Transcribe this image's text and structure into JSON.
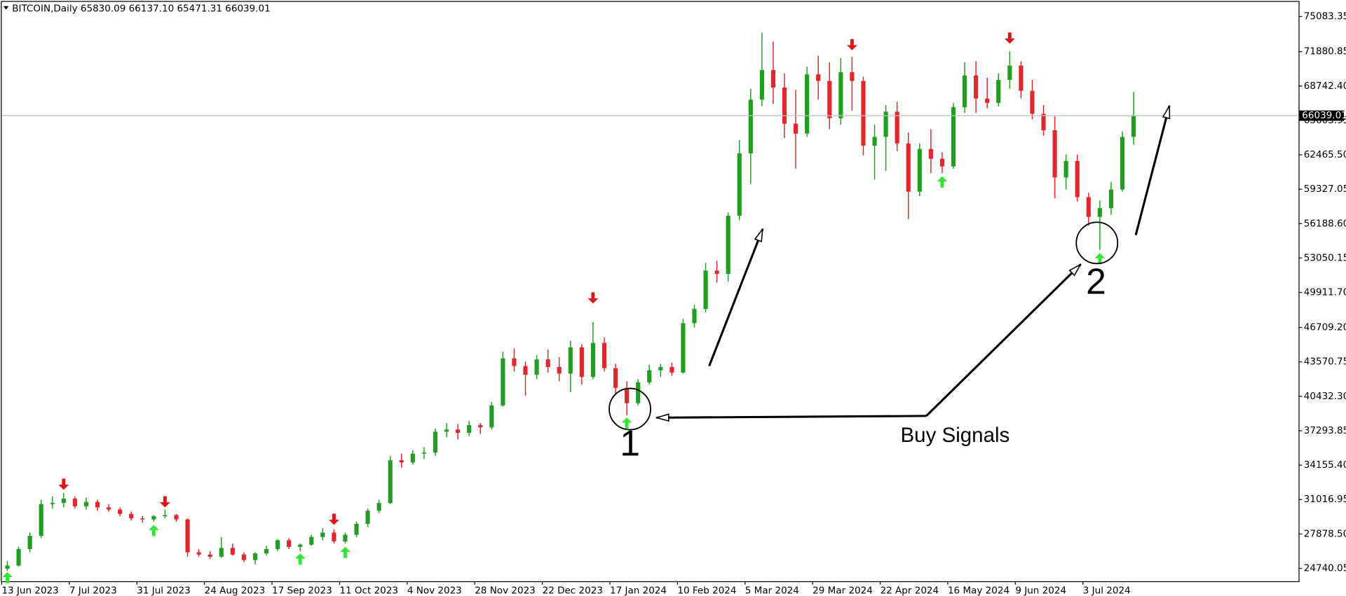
{
  "chart_data": {
    "type": "candlestick",
    "title": "BITCOIN,Daily 65830.09 66137.10 65471.31 66039.01",
    "up_color": "#1f9e1f",
    "down_color": "#e3262b",
    "current_price": 66039.01,
    "ylim": [
      23563,
      76417
    ],
    "yticks": [
      {
        "value": 75083.35,
        "label": "75083.35"
      },
      {
        "value": 71880.85,
        "label": "71880.85"
      },
      {
        "value": 68742.4,
        "label": "68742.40"
      },
      {
        "value": 65603.95,
        "label": "65603.95"
      },
      {
        "value": 62465.5,
        "label": "62465.50"
      },
      {
        "value": 59327.05,
        "label": "59327.05"
      },
      {
        "value": 56188.6,
        "label": "56188.60"
      },
      {
        "value": 53050.15,
        "label": "53050.15"
      },
      {
        "value": 49911.7,
        "label": "49911.70"
      },
      {
        "value": 46709.2,
        "label": "46709.20"
      },
      {
        "value": 43570.75,
        "label": "43570.75"
      },
      {
        "value": 40432.3,
        "label": "40432.30"
      },
      {
        "value": 37293.85,
        "label": "37293.85"
      },
      {
        "value": 34155.4,
        "label": "34155.40"
      },
      {
        "value": 31016.95,
        "label": "31016.95"
      },
      {
        "value": 27878.5,
        "label": "27878.50"
      },
      {
        "value": 24740.05,
        "label": "24740.05"
      }
    ],
    "categories": [
      "13 Jun 2023",
      null,
      null,
      null,
      null,
      null,
      "7 Jul 2023",
      null,
      null,
      null,
      null,
      null,
      "31 Jul 2023",
      null,
      null,
      null,
      null,
      null,
      "24 Aug 2023",
      null,
      null,
      null,
      null,
      null,
      "17 Sep 2023",
      null,
      null,
      null,
      null,
      null,
      "11 Oct 2023",
      null,
      null,
      null,
      null,
      null,
      "4 Nov 2023",
      null,
      null,
      null,
      null,
      null,
      "28 Nov 2023",
      null,
      null,
      null,
      null,
      null,
      "22 Dec 2023",
      null,
      null,
      null,
      null,
      null,
      "17 Jan 2024",
      null,
      null,
      null,
      null,
      null,
      "10 Feb 2024",
      null,
      null,
      null,
      null,
      null,
      "5 Mar 2024",
      null,
      null,
      null,
      null,
      null,
      "29 Mar 2024",
      null,
      null,
      null,
      null,
      null,
      "22 Apr 2024",
      null,
      null,
      null,
      null,
      null,
      "16 May 2024",
      null,
      null,
      null,
      null,
      null,
      "9 Jun 2024",
      null,
      null,
      null,
      null,
      null,
      "3 Jul 2024",
      null,
      null,
      null,
      null,
      null,
      null,
      null,
      null,
      null,
      null
    ],
    "ohlc": [
      [
        24700,
        25400,
        24500,
        25000
      ],
      [
        25000,
        26700,
        24900,
        26500
      ],
      [
        26500,
        28000,
        26200,
        27700
      ],
      [
        27700,
        31000,
        27500,
        30600
      ],
      [
        30600,
        31300,
        30200,
        30700
      ],
      [
        30700,
        31600,
        30300,
        31100
      ],
      [
        31100,
        31300,
        30200,
        30400
      ],
      [
        30400,
        31200,
        30100,
        30800
      ],
      [
        30800,
        31000,
        30000,
        30300
      ],
      [
        30300,
        30600,
        29900,
        30100
      ],
      [
        30100,
        30300,
        29500,
        29700
      ],
      [
        29700,
        29900,
        29100,
        29300
      ],
      [
        29300,
        29500,
        28900,
        29200
      ],
      [
        29200,
        29600,
        29000,
        29500
      ],
      [
        29500,
        30100,
        29300,
        29600
      ],
      [
        29600,
        29700,
        29000,
        29200
      ],
      [
        29200,
        29300,
        25800,
        26200
      ],
      [
        26200,
        26500,
        25800,
        26000
      ],
      [
        26000,
        26300,
        25600,
        25800
      ],
      [
        25800,
        27600,
        25700,
        26600
      ],
      [
        26600,
        27000,
        25900,
        26000
      ],
      [
        26000,
        26200,
        25300,
        25500
      ],
      [
        25500,
        26200,
        25100,
        26100
      ],
      [
        26100,
        26800,
        25900,
        26500
      ],
      [
        26500,
        27400,
        26300,
        27300
      ],
      [
        27300,
        27500,
        26500,
        26700
      ],
      [
        26700,
        27000,
        26300,
        26900
      ],
      [
        26900,
        27800,
        26800,
        27600
      ],
      [
        27600,
        28400,
        27300,
        28000
      ],
      [
        28000,
        28300,
        27000,
        27200
      ],
      [
        27200,
        28000,
        27000,
        27800
      ],
      [
        27800,
        29000,
        27600,
        28800
      ],
      [
        28800,
        30200,
        28500,
        30000
      ],
      [
        30000,
        31000,
        29800,
        30700
      ],
      [
        30700,
        35000,
        30600,
        34600
      ],
      [
        34600,
        35200,
        33900,
        34400
      ],
      [
        34400,
        35500,
        34200,
        35200
      ],
      [
        35200,
        35800,
        34700,
        35300
      ],
      [
        35300,
        37500,
        35000,
        37200
      ],
      [
        37200,
        38000,
        36700,
        37400
      ],
      [
        37400,
        37900,
        36500,
        37100
      ],
      [
        37100,
        38200,
        36800,
        37800
      ],
      [
        37800,
        38000,
        37000,
        37600
      ],
      [
        37600,
        39900,
        37400,
        39600
      ],
      [
        39600,
        44500,
        39500,
        43900
      ],
      [
        43900,
        44800,
        42700,
        43200
      ],
      [
        43200,
        43600,
        40500,
        42400
      ],
      [
        42400,
        44200,
        42000,
        43800
      ],
      [
        43800,
        44700,
        42600,
        43100
      ],
      [
        43100,
        44000,
        41800,
        42500
      ],
      [
        42500,
        45500,
        40800,
        44900
      ],
      [
        44900,
        45200,
        41500,
        42200
      ],
      [
        42200,
        47200,
        42000,
        45300
      ],
      [
        45300,
        45800,
        42700,
        43000
      ],
      [
        43000,
        43400,
        40600,
        41200
      ],
      [
        41200,
        41800,
        38700,
        39800
      ],
      [
        39800,
        42000,
        39600,
        41700
      ],
      [
        41700,
        43300,
        41500,
        42800
      ],
      [
        42800,
        43400,
        42200,
        43100
      ],
      [
        43100,
        43500,
        42300,
        42600
      ],
      [
        42600,
        47500,
        42500,
        47100
      ],
      [
        47100,
        48800,
        46700,
        48400
      ],
      [
        48400,
        52600,
        48100,
        51900
      ],
      [
        51900,
        52800,
        50800,
        51600
      ],
      [
        51600,
        57200,
        50900,
        56900
      ],
      [
        56900,
        63800,
        56500,
        62600
      ],
      [
        62600,
        68500,
        59800,
        67500
      ],
      [
        67500,
        73600,
        66900,
        70200
      ],
      [
        70200,
        72800,
        67100,
        68600
      ],
      [
        68600,
        69900,
        64000,
        65300
      ],
      [
        65300,
        68400,
        61200,
        64400
      ],
      [
        64400,
        70500,
        64100,
        69800
      ],
      [
        69800,
        71500,
        67500,
        69200
      ],
      [
        69200,
        70900,
        64800,
        65800
      ],
      [
        65800,
        71300,
        65200,
        70000
      ],
      [
        70000,
        71400,
        66500,
        69200
      ],
      [
        69200,
        69600,
        62400,
        63300
      ],
      [
        63300,
        65200,
        60200,
        64100
      ],
      [
        64100,
        67000,
        61000,
        66400
      ],
      [
        66400,
        67300,
        62800,
        63500
      ],
      [
        63500,
        64500,
        56600,
        59100
      ],
      [
        59100,
        63500,
        58700,
        63000
      ],
      [
        63000,
        64800,
        60800,
        62100
      ],
      [
        62100,
        62700,
        60800,
        61400
      ],
      [
        61400,
        67200,
        61200,
        66800
      ],
      [
        66800,
        70900,
        66300,
        69700
      ],
      [
        69700,
        71000,
        66300,
        67600
      ],
      [
        67600,
        69500,
        66700,
        67200
      ],
      [
        67200,
        69900,
        66900,
        69300
      ],
      [
        69300,
        71900,
        68500,
        70600
      ],
      [
        70600,
        71000,
        67600,
        68300
      ],
      [
        68300,
        69300,
        65700,
        66200
      ],
      [
        66200,
        67000,
        64200,
        64700
      ],
      [
        64700,
        66000,
        58500,
        60400
      ],
      [
        60400,
        62500,
        59300,
        61900
      ],
      [
        61900,
        62500,
        58200,
        58600
      ],
      [
        58600,
        59000,
        56000,
        56800
      ],
      [
        56800,
        58300,
        53800,
        57600
      ],
      [
        57600,
        60000,
        57000,
        59300
      ],
      [
        59300,
        64600,
        59100,
        64100
      ],
      [
        64100,
        68200,
        63400,
        66039.01
      ]
    ],
    "buy_signals": [
      24400,
      null,
      null,
      null,
      null,
      null,
      null,
      null,
      null,
      null,
      null,
      null,
      null,
      28700,
      null,
      null,
      null,
      null,
      null,
      null,
      null,
      null,
      null,
      null,
      null,
      null,
      26100,
      null,
      null,
      null,
      26700,
      null,
      null,
      null,
      null,
      null,
      null,
      null,
      null,
      null,
      null,
      null,
      null,
      null,
      null,
      null,
      null,
      null,
      null,
      null,
      null,
      null,
      null,
      null,
      null,
      38500,
      null,
      null,
      null,
      null,
      null,
      null,
      null,
      null,
      null,
      null,
      null,
      null,
      null,
      null,
      null,
      null,
      null,
      null,
      null,
      null,
      null,
      null,
      null,
      null,
      null,
      null,
      null,
      60500,
      null,
      null,
      null,
      null,
      null,
      null,
      null,
      null,
      null,
      null,
      null,
      null,
      null,
      53500,
      null,
      null,
      null
    ],
    "sell_signals": [
      null,
      null,
      null,
      null,
      null,
      31900,
      null,
      null,
      null,
      null,
      null,
      null,
      null,
      null,
      30300,
      null,
      null,
      null,
      null,
      null,
      null,
      null,
      null,
      null,
      null,
      null,
      null,
      null,
      null,
      28700,
      null,
      null,
      null,
      null,
      null,
      null,
      null,
      null,
      null,
      null,
      null,
      null,
      null,
      null,
      null,
      null,
      null,
      null,
      null,
      null,
      null,
      null,
      48900,
      null,
      null,
      null,
      null,
      null,
      null,
      null,
      null,
      null,
      null,
      null,
      null,
      null,
      null,
      null,
      null,
      null,
      null,
      null,
      null,
      null,
      null,
      72000,
      null,
      null,
      null,
      null,
      null,
      null,
      null,
      null,
      null,
      null,
      null,
      null,
      null,
      72600,
      null,
      null,
      null,
      null,
      null,
      null,
      null,
      null,
      null,
      null,
      null
    ],
    "annotations": [
      "Buy Signals",
      "1",
      "2"
    ]
  }
}
